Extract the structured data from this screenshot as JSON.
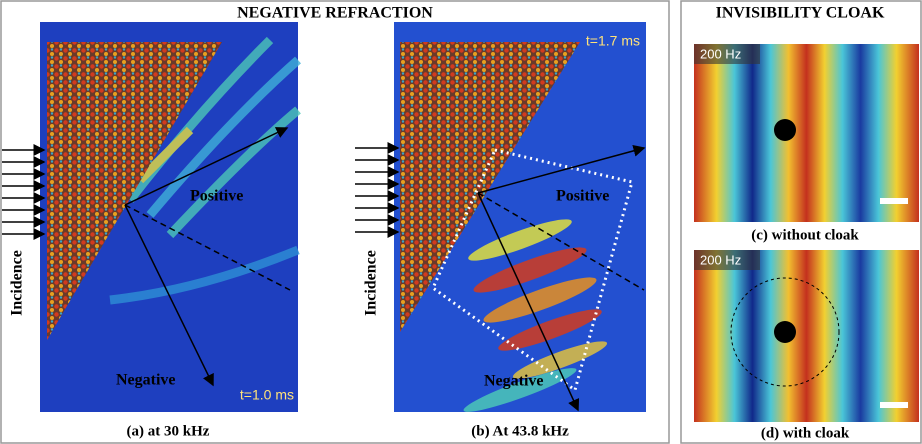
{
  "left_section": {
    "title": "NEGATIVE REFRACTION",
    "panel_a": {
      "incidence": "Incidence",
      "positive": "Positive",
      "negative": "Negative",
      "time": "t=1.0 ms",
      "caption": "(a) at 30 kHz"
    },
    "panel_b": {
      "incidence": "Incidence",
      "positive": "Positive",
      "negative": "Negative",
      "time": "t=1.7 ms",
      "caption": "(b) At 43.8 kHz"
    }
  },
  "right_section": {
    "title": "INVISIBILITY CLOAK",
    "panel_c": {
      "frequency": "200 Hz",
      "caption": "(c) without cloak"
    },
    "panel_d": {
      "frequency": "200 Hz",
      "caption": "(d) with cloak"
    }
  }
}
